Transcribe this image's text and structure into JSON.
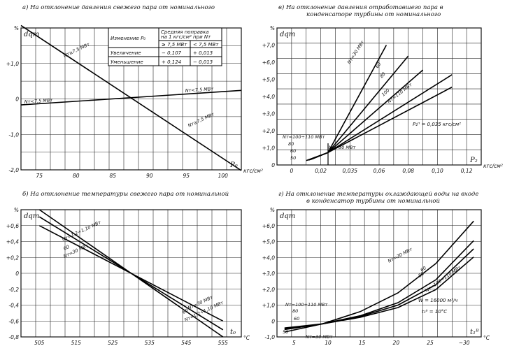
{
  "chart_data": [
    {
      "id": "a",
      "type": "line",
      "title": "а) На отклонение давления свежего пара от номинального",
      "xlabel": "P₀",
      "x_unit": "кгс/см²",
      "ylabel": "dqт",
      "y_unit": "%",
      "xlim": [
        73,
        103
      ],
      "ylim": [
        -2.0,
        2.0
      ],
      "x_ticks": [
        "75",
        "80",
        "85",
        "90",
        "95",
        "100"
      ],
      "y_ticks": [
        "%",
        "+1,0",
        "0",
        "-1,0",
        "-2,0"
      ],
      "series": [
        {
          "name": "Nт≥7,5 МВт",
          "points": [
            [
              73,
              2.07
            ],
            [
              103,
              -2.02
            ]
          ]
        },
        {
          "name": "Nт<7,5 МВт",
          "points": [
            [
              73,
              -0.17
            ],
            [
              103,
              0.24
            ]
          ]
        }
      ],
      "line_labels": [
        "Nт≥7,5 МВт",
        "Nт<7,5 МВт",
        "Nт≥7,5 МВт",
        "Nт<7,5 МВт"
      ],
      "table": {
        "col1": "Изменение P₀",
        "col2": "Средняя поправка на 1 кгс/см² при Nт",
        "sub1": "≥ 7,5 МВт",
        "sub2": "< 7,5 МВт",
        "rows": [
          {
            "label": "Увеличение",
            "a": "− 0,107",
            "b": "+ 0,013"
          },
          {
            "label": "Уменьшение",
            "a": "+ 0,124",
            "b": "− 0,013"
          }
        ]
      }
    },
    {
      "id": "b",
      "type": "line",
      "title": "б) На отклонение температуры свежего пара от номинальной",
      "xlabel": "t₀",
      "x_unit": "°C",
      "ylabel": "dqт",
      "y_unit": "%",
      "xlim": [
        500,
        560
      ],
      "ylim": [
        -0.8,
        0.8
      ],
      "x_ticks": [
        "505",
        "515",
        "525",
        "535",
        "545",
        "555"
      ],
      "y_ticks": [
        "%",
        "+0,6",
        "+0,4",
        "+0,2",
        "0",
        "-0,2",
        "-0,4",
        "-0,6",
        "-0,8"
      ],
      "series": [
        {
          "name": "Nт=1,2÷1,10 МВт",
          "points": [
            [
              505,
              0.8
            ],
            [
              555,
              -0.8
            ]
          ]
        },
        {
          "name": "60",
          "points": [
            [
              505,
              0.71
            ],
            [
              555,
              -0.71
            ]
          ]
        },
        {
          "name": "Nт=30 МВт",
          "points": [
            [
              505,
              0.6
            ],
            [
              555,
              -0.6
            ]
          ]
        }
      ],
      "line_labels": [
        "Nт=1,2÷1,10 МВт",
        "60",
        "Nт=30 МВт",
        "Nт=30 МВт",
        "60",
        "Nт=1,2÷1,10 МВт"
      ]
    },
    {
      "id": "c",
      "type": "line",
      "title": "в) На отклонение давления отработавшего пара в конденсаторе турбины от номинального",
      "xlabel": "P₂",
      "x_unit": "кгс/см²",
      "ylabel": "dqт",
      "y_unit": "%",
      "xlim": [
        0,
        0.14
      ],
      "ylim": [
        -0.8,
        8.0
      ],
      "x_ticks": [
        "0",
        "0,02",
        "0,035",
        "0,06",
        "0,08",
        "0,10",
        "0,12"
      ],
      "y_ticks": [
        "%",
        "+7,0",
        "+6,0",
        "+5,0",
        "+4,0",
        "+3,0",
        "+2,0",
        "+1,0",
        "0"
      ],
      "series": [
        {
          "name": "Nт=30 МВт",
          "points": [
            [
              0.02,
              -0.52
            ],
            [
              0.035,
              0.0
            ],
            [
              0.075,
              6.9
            ]
          ]
        },
        {
          "name": "60",
          "points": [
            [
              0.021,
              -0.5
            ],
            [
              0.035,
              0.0
            ],
            [
              0.09,
              6.2
            ]
          ]
        },
        {
          "name": "80",
          "points": [
            [
              0.022,
              -0.48
            ],
            [
              0.035,
              0.0
            ],
            [
              0.1,
              5.3
            ]
          ]
        },
        {
          "name": "100",
          "points": [
            [
              0.023,
              -0.45
            ],
            [
              0.035,
              0.0
            ],
            [
              0.12,
              5.0
            ]
          ]
        },
        {
          "name": "Nт=110 МВт",
          "points": [
            [
              0.024,
              -0.42
            ],
            [
              0.035,
              0.0
            ],
            [
              0.12,
              4.2
            ]
          ]
        }
      ],
      "line_labels": [
        "Nт=30 МВт",
        "60",
        "80",
        "100",
        "Nт=110 МВт",
        "Nт=100÷110 МВт",
        "80",
        "60",
        "50",
        "Nт=30 МВт"
      ],
      "annotation": "P₂ᴴ = 0,035 кгс/см²"
    },
    {
      "id": "d",
      "type": "line",
      "title": "г) На отклонение температуры охлаждающей воды на входе в конденсатор турбины от номинальной",
      "xlabel": "t₁ᴮ",
      "x_unit": "°C",
      "ylabel": "dqт",
      "y_unit": "%",
      "xlim": [
        4,
        31
      ],
      "ylim": [
        -0.8,
        7.0
      ],
      "x_ticks": [
        "5",
        "10",
        "15",
        "20",
        "25",
        "~30"
      ],
      "y_ticks": [
        "%",
        "+6,0",
        "+5,0",
        "+4,0",
        "+3,0",
        "+2,0",
        "+1,0",
        "0",
        "-1,0"
      ],
      "series": [
        {
          "name": "Nт=30 МВт",
          "points": [
            [
              5,
              -0.5
            ],
            [
              10,
              0.0
            ],
            [
              15,
              0.75
            ],
            [
              20,
              1.9
            ],
            [
              25,
              3.7
            ],
            [
              30,
              6.3
            ]
          ]
        },
        {
          "name": "60",
          "points": [
            [
              5,
              -0.35
            ],
            [
              10,
              0.0
            ],
            [
              15,
              0.5
            ],
            [
              20,
              1.3
            ],
            [
              25,
              2.7
            ],
            [
              30,
              5.1
            ]
          ]
        },
        {
          "name": "80",
          "points": [
            [
              5,
              -0.3
            ],
            [
              10,
              0.0
            ],
            [
              15,
              0.45
            ],
            [
              20,
              1.15
            ],
            [
              25,
              2.4
            ],
            [
              30,
              4.6
            ]
          ]
        },
        {
          "name": "Nт=100÷110 МВт",
          "points": [
            [
              5,
              -0.25
            ],
            [
              10,
              0.0
            ],
            [
              15,
              0.4
            ],
            [
              20,
              1.0
            ],
            [
              25,
              2.1
            ],
            [
              30,
              4.1
            ]
          ]
        }
      ],
      "line_labels": [
        "Nт=30 МВт",
        "60",
        "80",
        "Nт=100÷110 МВт",
        "Nт=100÷110 МВт",
        "80",
        "60",
        "50",
        "Nт=30 МВт"
      ],
      "annotation_1": "W = 16000 м³/ч",
      "annotation_2": "t₁ᴮ = 10°C"
    }
  ]
}
